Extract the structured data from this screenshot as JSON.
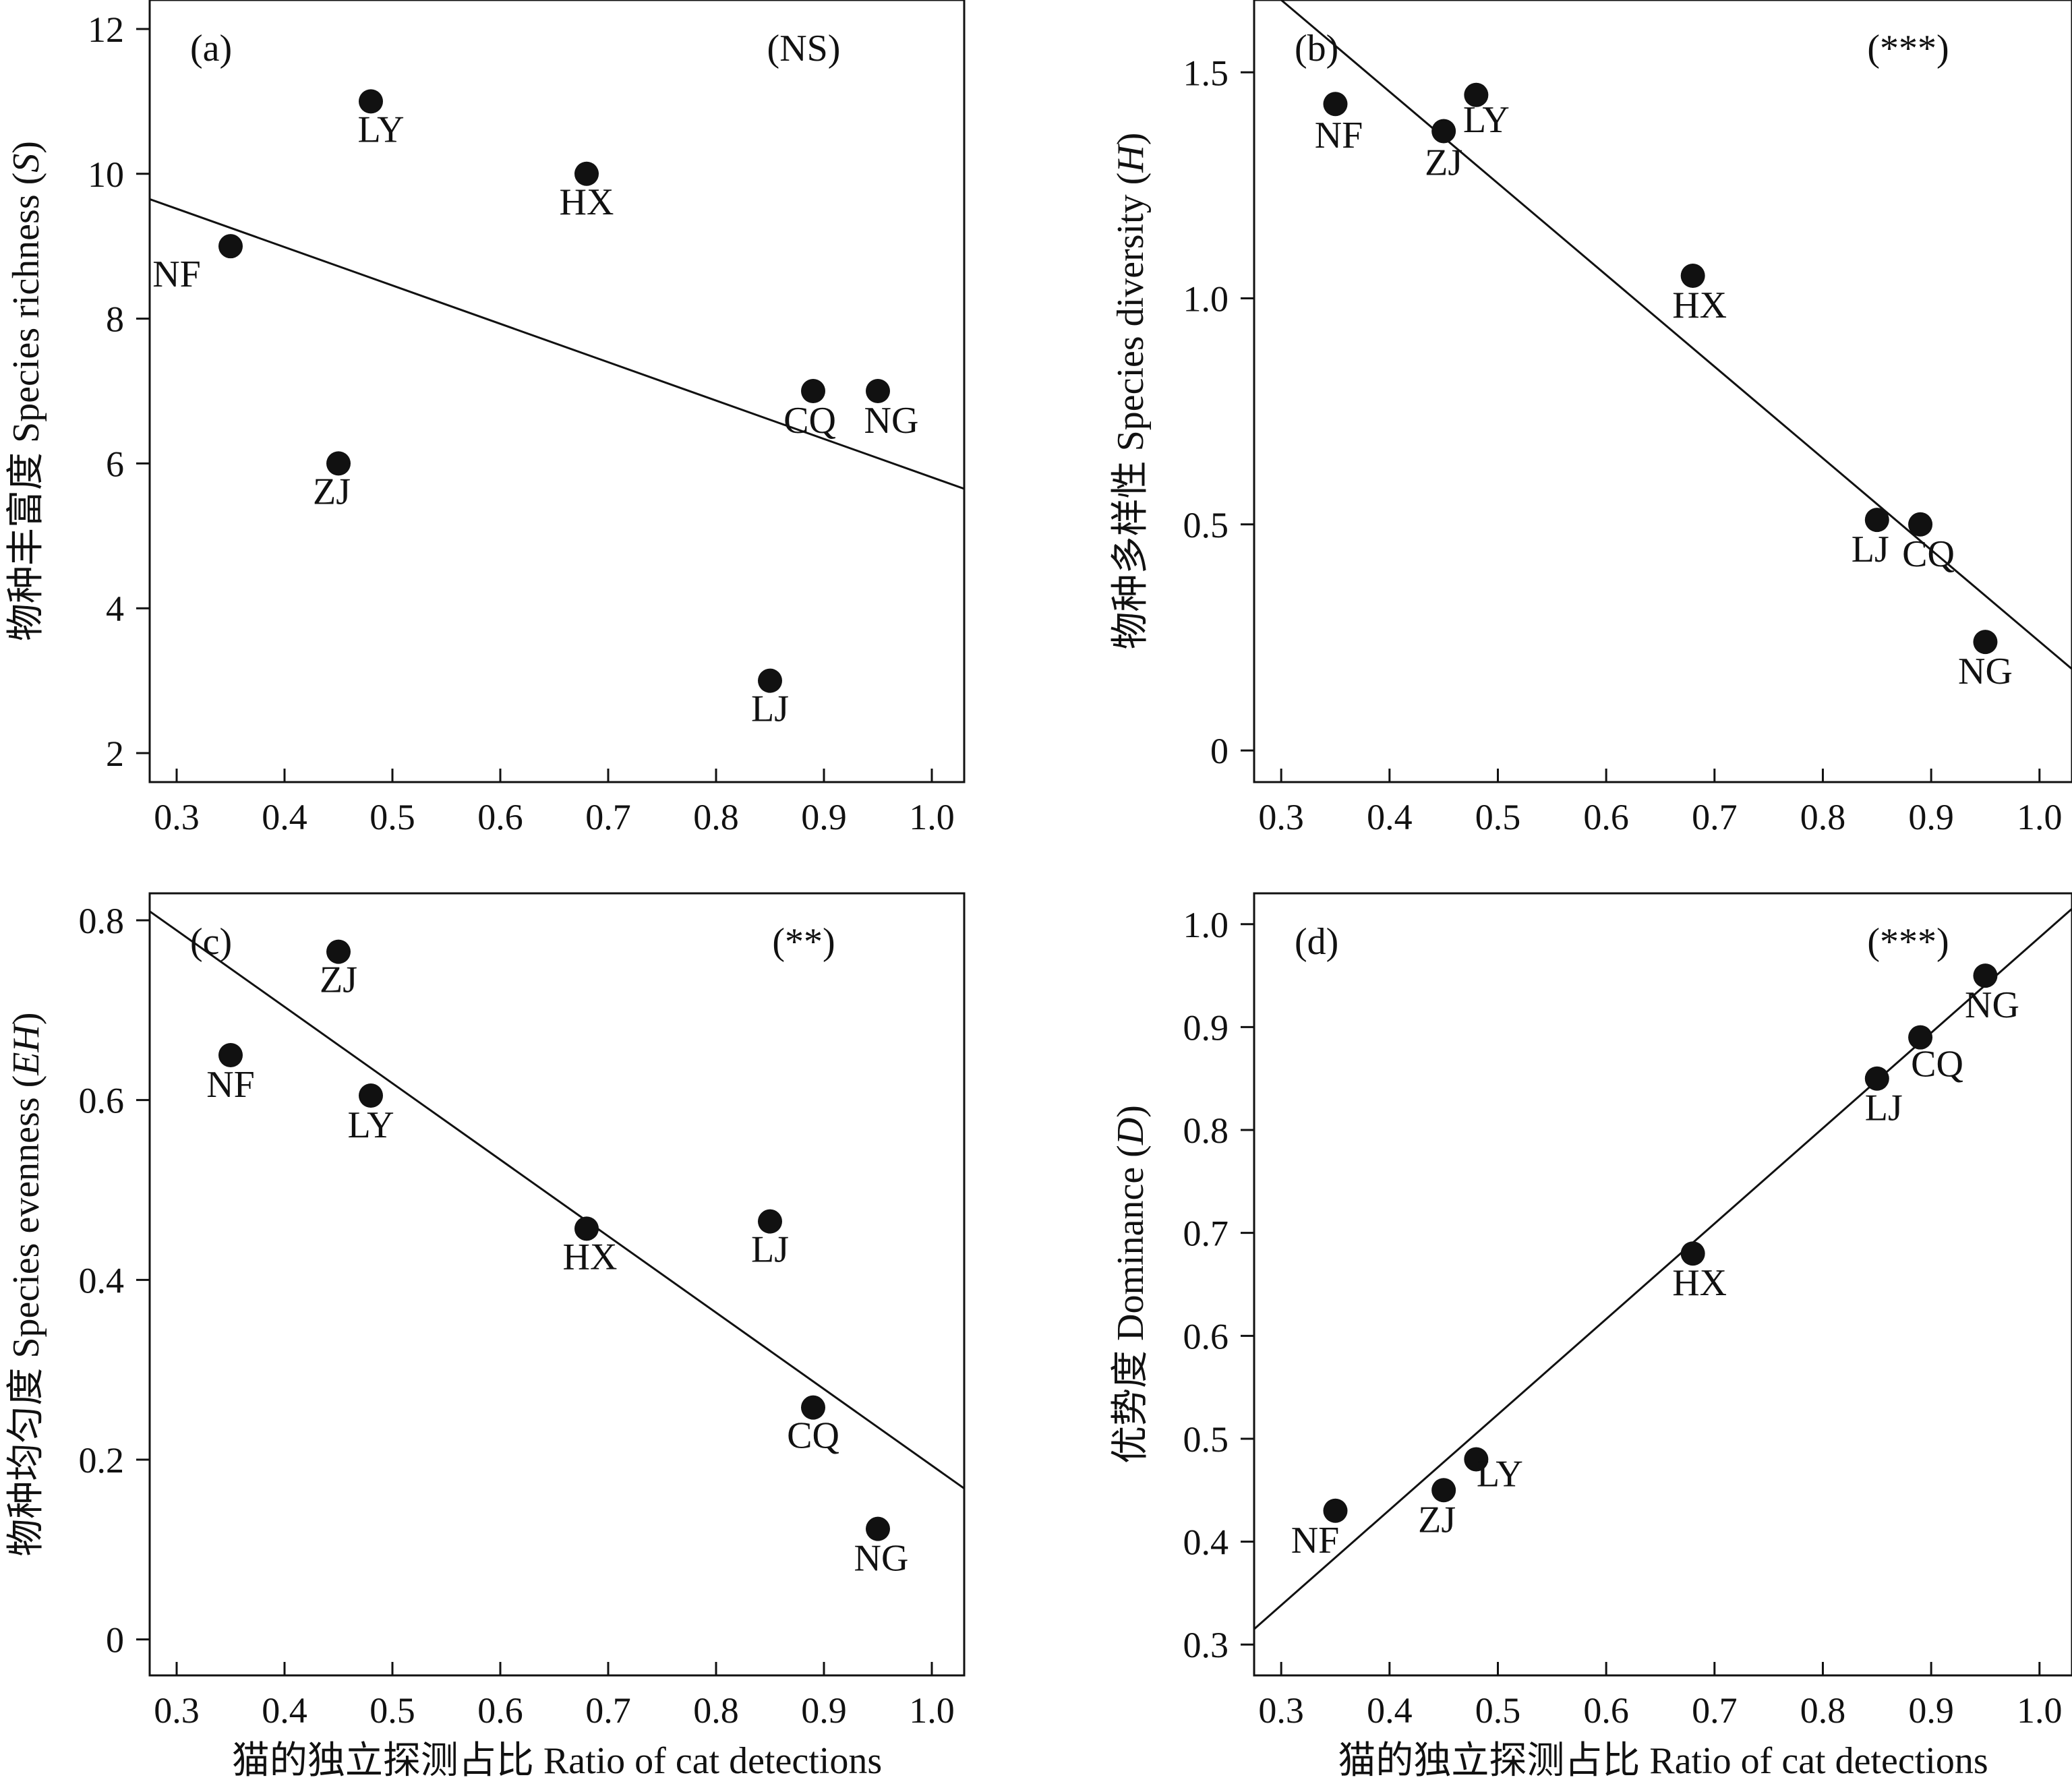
{
  "chart_data": [
    {
      "id": "a",
      "type": "scatter",
      "panel_tag": "(a)",
      "significance": "(NS)",
      "xlabel": "",
      "ylabel": "物种丰富度 Species richness (S)",
      "ylabel_parts": [
        "物种丰富度 Species richness (",
        "S",
        ")"
      ],
      "xlim": [
        0.275,
        1.03
      ],
      "ylim": [
        1.6,
        12.4
      ],
      "xticks": [
        0.3,
        0.4,
        0.5,
        0.6,
        0.7,
        0.8,
        0.9,
        1.0
      ],
      "xtick_labels": [
        "0.3",
        "0.4",
        "0.5",
        "0.6",
        "0.7",
        "0.8",
        "0.9",
        "1.0"
      ],
      "yticks": [
        2,
        4,
        6,
        8,
        10,
        12
      ],
      "ytick_labels": [
        "2",
        "4",
        "6",
        "8",
        "10",
        "12"
      ],
      "points": [
        {
          "label": "NF",
          "x": 0.35,
          "y": 9.0
        },
        {
          "label": "ZJ",
          "x": 0.45,
          "y": 6.0
        },
        {
          "label": "LY",
          "x": 0.48,
          "y": 11.0
        },
        {
          "label": "HX",
          "x": 0.68,
          "y": 10.0
        },
        {
          "label": "LJ",
          "x": 0.85,
          "y": 3.0
        },
        {
          "label": "CQ",
          "x": 0.89,
          "y": 7.0
        },
        {
          "label": "NG",
          "x": 0.95,
          "y": 7.0
        }
      ],
      "fit_line": [
        [
          0.275,
          9.65
        ],
        [
          1.03,
          5.65
        ]
      ]
    },
    {
      "id": "b",
      "type": "scatter",
      "panel_tag": "(b)",
      "significance": "(***)",
      "xlabel": "",
      "ylabel": "物种多样性 Species diversity (H)",
      "ylabel_parts": [
        "物种多样性 Species diversity (",
        "H",
        ")"
      ],
      "xlim": [
        0.275,
        1.03
      ],
      "ylim": [
        -0.07,
        1.66
      ],
      "xticks": [
        0.3,
        0.4,
        0.5,
        0.6,
        0.7,
        0.8,
        0.9,
        1.0
      ],
      "xtick_labels": [
        "0.3",
        "0.4",
        "0.5",
        "0.6",
        "0.7",
        "0.8",
        "0.9",
        "1.0"
      ],
      "yticks": [
        0,
        0.5,
        1.0,
        1.5
      ],
      "ytick_labels": [
        "0",
        "0.5",
        "1.0",
        "1.5"
      ],
      "points": [
        {
          "label": "NF",
          "x": 0.35,
          "y": 1.43
        },
        {
          "label": "ZJ",
          "x": 0.45,
          "y": 1.37
        },
        {
          "label": "LY",
          "x": 0.48,
          "y": 1.45
        },
        {
          "label": "HX",
          "x": 0.68,
          "y": 1.05
        },
        {
          "label": "LJ",
          "x": 0.85,
          "y": 0.51
        },
        {
          "label": "CQ",
          "x": 0.89,
          "y": 0.5
        },
        {
          "label": "NG",
          "x": 0.95,
          "y": 0.24
        }
      ],
      "fit_line": [
        [
          0.3,
          1.66
        ],
        [
          1.03,
          0.18
        ]
      ]
    },
    {
      "id": "c",
      "type": "scatter",
      "panel_tag": "(c)",
      "significance": "(**)",
      "xlabel": "猫的独立探测占比 Ratio of cat detections",
      "ylabel": "物种均匀度 Species evenness (EH)",
      "ylabel_parts": [
        "物种均匀度 Species evenness (",
        "EH",
        ")"
      ],
      "xlim": [
        0.275,
        1.03
      ],
      "ylim": [
        -0.04,
        0.83
      ],
      "xticks": [
        0.3,
        0.4,
        0.5,
        0.6,
        0.7,
        0.8,
        0.9,
        1.0
      ],
      "xtick_labels": [
        "0.3",
        "0.4",
        "0.5",
        "0.6",
        "0.7",
        "0.8",
        "0.9",
        "1.0"
      ],
      "yticks": [
        0,
        0.2,
        0.4,
        0.6,
        0.8
      ],
      "ytick_labels": [
        "0",
        "0.2",
        "0.4",
        "0.6",
        "0.8"
      ],
      "points": [
        {
          "label": "NF",
          "x": 0.35,
          "y": 0.65
        },
        {
          "label": "ZJ",
          "x": 0.45,
          "y": 0.765
        },
        {
          "label": "LY",
          "x": 0.48,
          "y": 0.605
        },
        {
          "label": "HX",
          "x": 0.68,
          "y": 0.457
        },
        {
          "label": "LJ",
          "x": 0.85,
          "y": 0.465
        },
        {
          "label": "CQ",
          "x": 0.89,
          "y": 0.258
        },
        {
          "label": "NG",
          "x": 0.95,
          "y": 0.123
        }
      ],
      "fit_line": [
        [
          0.275,
          0.81
        ],
        [
          1.03,
          0.168
        ]
      ]
    },
    {
      "id": "d",
      "type": "scatter",
      "panel_tag": "(d)",
      "significance": "(***)",
      "xlabel": "猫的独立探测占比 Ratio of cat detections",
      "ylabel": "优势度 Dominance (D)",
      "ylabel_parts": [
        "优势度 Dominance (",
        "D",
        ")"
      ],
      "xlim": [
        0.275,
        1.03
      ],
      "ylim": [
        0.27,
        1.03
      ],
      "xticks": [
        0.3,
        0.4,
        0.5,
        0.6,
        0.7,
        0.8,
        0.9,
        1.0
      ],
      "xtick_labels": [
        "0.3",
        "0.4",
        "0.5",
        "0.6",
        "0.7",
        "0.8",
        "0.9",
        "1.0"
      ],
      "yticks": [
        0.3,
        0.4,
        0.5,
        0.6,
        0.7,
        0.8,
        0.9,
        1.0
      ],
      "ytick_labels": [
        "0.3",
        "0.4",
        "0.5",
        "0.6",
        "0.7",
        "0.8",
        "0.9",
        "1.0"
      ],
      "points": [
        {
          "label": "NF",
          "x": 0.35,
          "y": 0.43
        },
        {
          "label": "ZJ",
          "x": 0.45,
          "y": 0.45
        },
        {
          "label": "LY",
          "x": 0.48,
          "y": 0.48
        },
        {
          "label": "HX",
          "x": 0.68,
          "y": 0.68
        },
        {
          "label": "LJ",
          "x": 0.85,
          "y": 0.85
        },
        {
          "label": "CQ",
          "x": 0.89,
          "y": 0.89
        },
        {
          "label": "NG",
          "x": 0.95,
          "y": 0.95
        }
      ],
      "fit_line": [
        [
          0.275,
          0.315
        ],
        [
          1.03,
          1.015
        ]
      ]
    }
  ]
}
